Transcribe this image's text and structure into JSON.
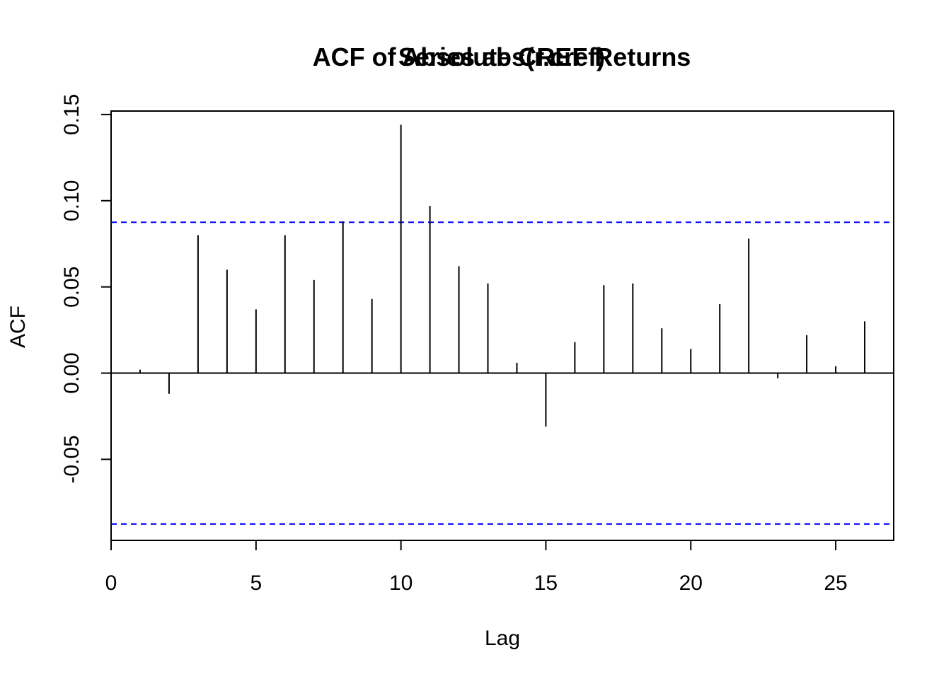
{
  "chart_data": {
    "type": "bar",
    "title_overlay": [
      "ACF of Absolute CREF Returns",
      "Series abs(r.cref)"
    ],
    "xlabel": "Lag",
    "ylabel": "ACF",
    "xlim": [
      0,
      27
    ],
    "ylim": [
      -0.097,
      0.152
    ],
    "x_ticks": [
      0,
      5,
      10,
      15,
      20,
      25
    ],
    "x_tick_labels": [
      "0",
      "5",
      "10",
      "15",
      "20",
      "25"
    ],
    "y_ticks": [
      -0.05,
      0.0,
      0.05,
      0.1,
      0.15
    ],
    "y_tick_labels": [
      "-0.05",
      "0.00",
      "0.05",
      "0.10",
      "0.15"
    ],
    "lags": [
      1,
      2,
      3,
      4,
      5,
      6,
      7,
      8,
      9,
      10,
      11,
      12,
      13,
      14,
      15,
      16,
      17,
      18,
      19,
      20,
      21,
      22,
      23,
      24,
      25,
      26
    ],
    "acf": [
      0.002,
      -0.012,
      0.08,
      0.06,
      0.037,
      0.08,
      0.054,
      0.088,
      0.043,
      0.144,
      0.097,
      0.062,
      0.052,
      0.006,
      -0.031,
      0.018,
      0.051,
      0.052,
      0.026,
      0.014,
      0.04,
      0.078,
      -0.003,
      0.022,
      0.004,
      0.03
    ],
    "confidence_bound": 0.0875,
    "zero_line": 0,
    "colors": {
      "bars": "#000000",
      "confidence_lines": "#0000ff",
      "zero_line": "#000000",
      "axis": "#000000"
    },
    "grid": false,
    "legend": "none"
  }
}
